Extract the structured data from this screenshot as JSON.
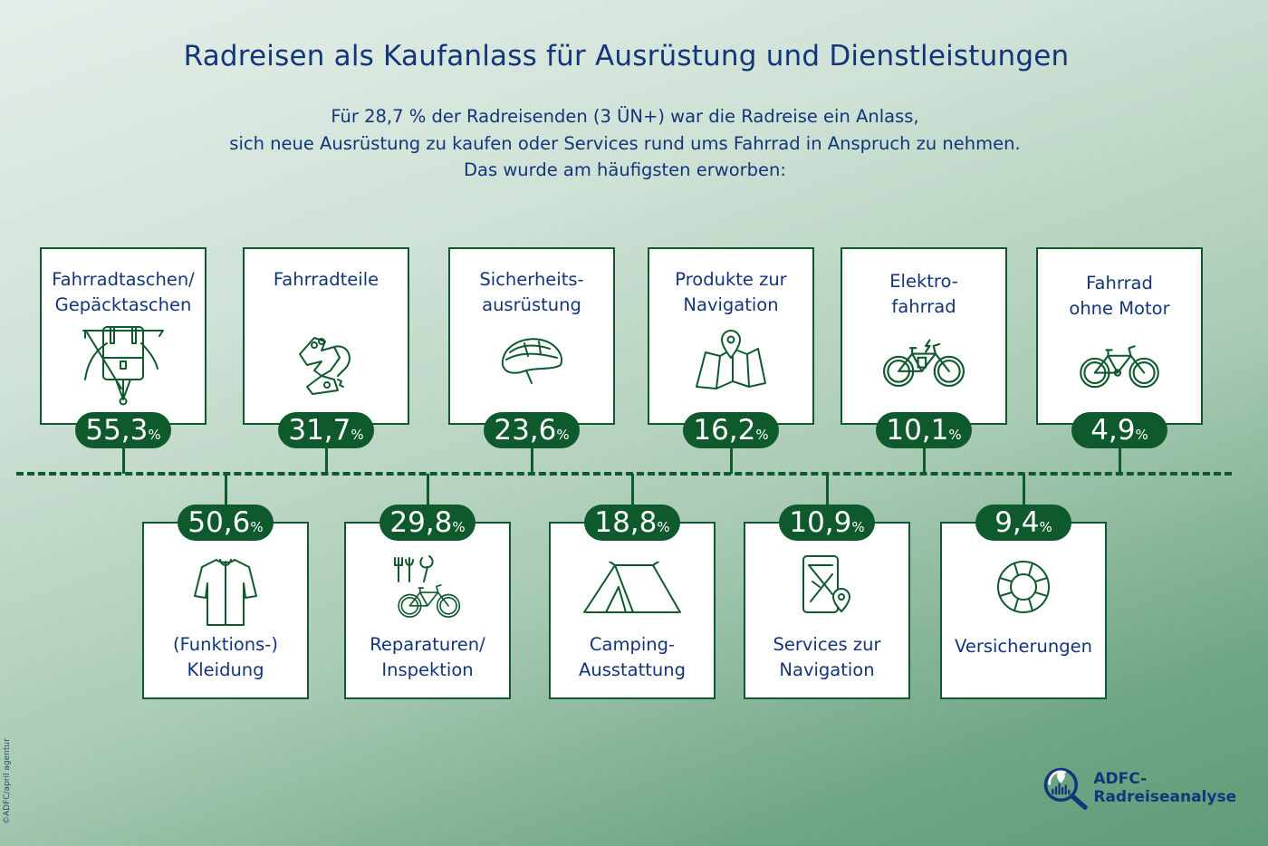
{
  "title": "Radreisen als Kaufanlass für Ausrüstung und Dienstleistungen",
  "subtitle": "Für 28,7 % der Radreisenden (3 ÜN+) war die Radreise ein Anlass,\nsich neue Ausrüstung zu kaufen oder Services rund ums Fahrrad in Anspruch zu nehmen.\nDas wurde am häufigsten erworben:",
  "colors": {
    "accent": "#0f5a2c",
    "text": "#13357a"
  },
  "chart_data": {
    "type": "infographic",
    "unit": "%",
    "items": [
      {
        "label": "Fahrradtaschen/\nGepäcktaschen",
        "value": "55,3",
        "icon": "pannier-bag-icon",
        "row": "top"
      },
      {
        "label": "(Funktions-)\nKleidung",
        "value": "50,6",
        "icon": "cycling-jersey-icon",
        "row": "bottom"
      },
      {
        "label": "Fahrradteile",
        "value": "31,7",
        "icon": "derailleur-icon",
        "row": "top"
      },
      {
        "label": "Reparaturen/\nInspektion",
        "value": "29,8",
        "icon": "repair-tools-bike-icon",
        "row": "bottom"
      },
      {
        "label": "Sicherheits-\nausrüstung",
        "value": "23,6",
        "icon": "helmet-icon",
        "row": "top"
      },
      {
        "label": "Camping-\nAusstattung",
        "value": "18,8",
        "icon": "tent-icon",
        "row": "bottom"
      },
      {
        "label": "Produkte zur\nNavigation",
        "value": "16,2",
        "icon": "map-pin-icon",
        "row": "top"
      },
      {
        "label": "Services zur\nNavigation",
        "value": "10,9",
        "icon": "phone-map-icon",
        "row": "bottom"
      },
      {
        "label": "Elektro-\nfahrrad",
        "value": "10,1",
        "icon": "ebike-icon",
        "row": "top"
      },
      {
        "label": "Versicherungen",
        "value": "9,4",
        "icon": "lifebuoy-icon",
        "row": "bottom"
      },
      {
        "label": "Fahrrad\nohne Motor",
        "value": "4,9",
        "icon": "bicycle-icon",
        "row": "top"
      }
    ]
  },
  "credit": "©ADFC/april agentur",
  "logo_text": "ADFC-Radreiseanalyse"
}
